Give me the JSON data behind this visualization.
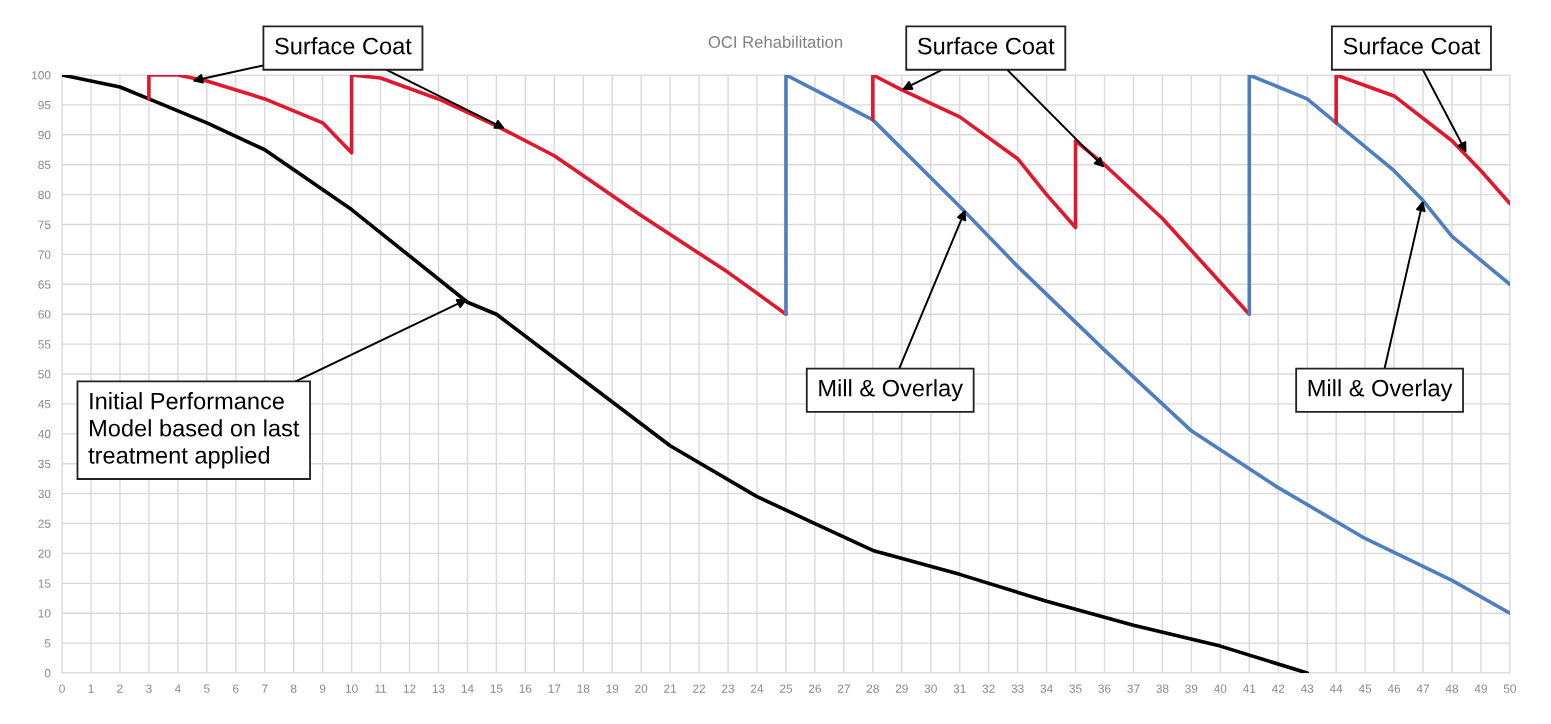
{
  "chart_data": {
    "type": "line",
    "title": "OCI Rehabilitation",
    "xlim": [
      0,
      50
    ],
    "xticks": [
      0,
      1,
      2,
      3,
      4,
      5,
      6,
      7,
      8,
      9,
      10,
      11,
      12,
      13,
      14,
      15,
      16,
      17,
      18,
      19,
      20,
      21,
      22,
      23,
      24,
      25,
      26,
      27,
      28,
      29,
      30,
      31,
      32,
      33,
      34,
      35,
      36,
      37,
      38,
      39,
      40,
      41,
      42,
      43,
      44,
      45,
      46,
      47,
      48,
      49,
      50
    ],
    "ylim": [
      0,
      100
    ],
    "yticks": [
      0,
      5,
      10,
      15,
      20,
      25,
      30,
      35,
      40,
      45,
      50,
      55,
      60,
      65,
      70,
      75,
      80,
      85,
      90,
      95,
      100
    ],
    "grid": true,
    "marker": "none",
    "line_style": "solid",
    "series": [
      {
        "color": "#000000",
        "x": [
          0,
          2,
          3,
          5,
          7,
          10,
          14,
          15,
          18,
          21,
          24,
          26,
          28,
          31,
          34,
          37,
          40,
          43
        ],
        "values": [
          100,
          98,
          96,
          92,
          87.5,
          77.5,
          62,
          60,
          49,
          38,
          29.5,
          25,
          20.5,
          16.5,
          12,
          8,
          4.5,
          0
        ]
      },
      {
        "color": "#e0182d",
        "x": [
          3,
          3,
          4,
          5,
          7,
          9,
          10,
          10,
          11,
          13,
          15,
          17,
          20,
          23,
          25
        ],
        "values": [
          96,
          100,
          100,
          99,
          96,
          92,
          87,
          100,
          99.5,
          96,
          91.5,
          86.5,
          76.5,
          67,
          60
        ]
      },
      {
        "color": "#4f7ec0",
        "x": [
          25,
          25,
          28,
          31,
          33,
          36,
          39,
          42,
          45,
          48,
          50
        ],
        "values": [
          60,
          100,
          92.5,
          78,
          68,
          54,
          40.5,
          31,
          22.5,
          15.5,
          10
        ]
      },
      {
        "color": "#e0182d",
        "x": [
          28,
          28,
          29,
          31,
          33,
          34,
          35,
          35,
          36,
          38,
          41
        ],
        "values": [
          92.5,
          100,
          97.5,
          93,
          86,
          80,
          74.5,
          89,
          85,
          76,
          60
        ]
      },
      {
        "color": "#4f7ec0",
        "x": [
          41,
          41,
          43,
          44,
          46,
          47,
          48,
          50
        ],
        "values": [
          60,
          100,
          96,
          92,
          84,
          79,
          73,
          65
        ]
      },
      {
        "color": "#e0182d",
        "x": [
          44,
          44,
          46,
          48,
          49,
          50
        ],
        "values": [
          92,
          100,
          96.5,
          89,
          84,
          78.5
        ]
      }
    ],
    "annotations": [
      {
        "text": "Surface Coat",
        "x": 4.5,
        "y": 99
      },
      {
        "text": "Surface Coat",
        "x": 29,
        "y": 97.5
      },
      {
        "text": "Surface Coat",
        "x": 48.5,
        "y": 87
      },
      {
        "text": "Mill & Overlay",
        "x": 31.2,
        "y": 77.5
      },
      {
        "text": "Mill & Overlay",
        "x": 47,
        "y": 79
      },
      {
        "text": "Initial Performance\nModel based on last\ntreatment applied",
        "x": 14,
        "y": 62.5
      }
    ]
  }
}
